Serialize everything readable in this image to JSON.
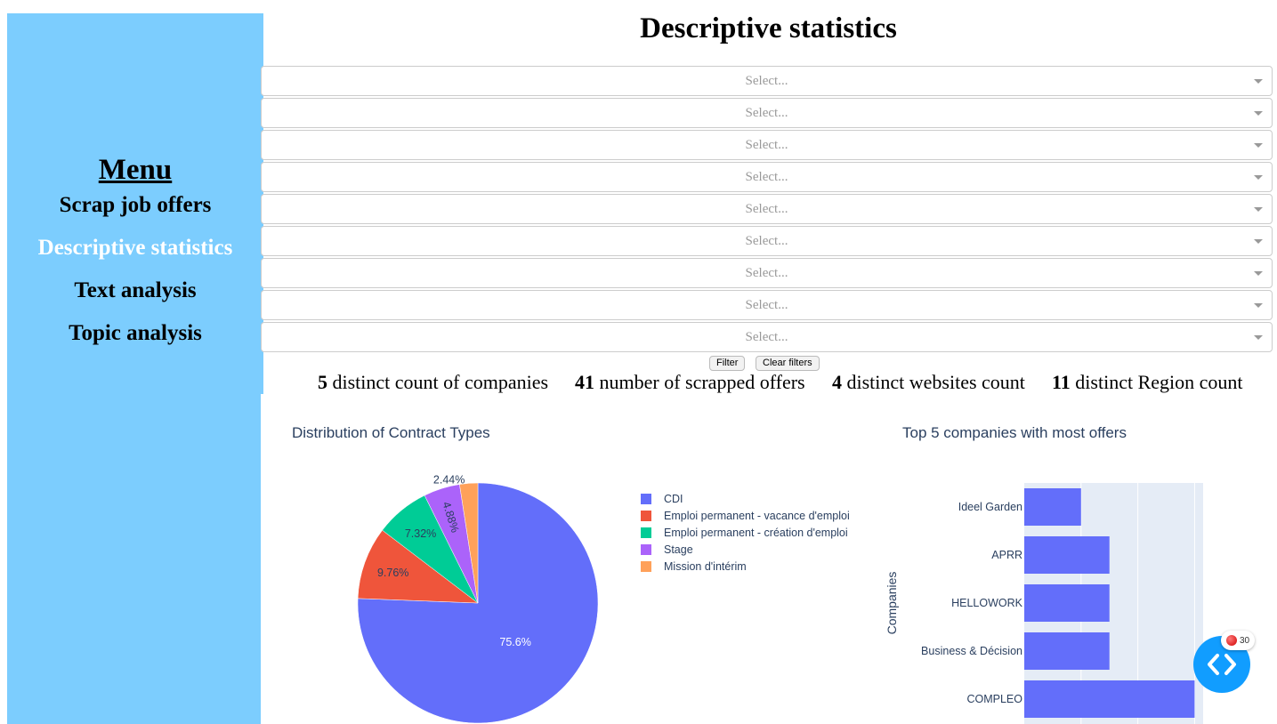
{
  "sidebar": {
    "title": "Menu",
    "items": [
      {
        "label": "Scrap job offers",
        "active": false
      },
      {
        "label": "Descriptive statistics",
        "active": true
      },
      {
        "label": "Text analysis",
        "active": false
      },
      {
        "label": "Topic analysis",
        "active": false
      }
    ],
    "bg_color": "#7ccdfe"
  },
  "page_title": "Descriptive statistics",
  "filters": {
    "selects": [
      {
        "placeholder": "Select..."
      },
      {
        "placeholder": "Select..."
      },
      {
        "placeholder": "Select..."
      },
      {
        "placeholder": "Select..."
      },
      {
        "placeholder": "Select..."
      },
      {
        "placeholder": "Select..."
      },
      {
        "placeholder": "Select..."
      },
      {
        "placeholder": "Select..."
      },
      {
        "placeholder": "Select..."
      }
    ],
    "filter_label": "Filter",
    "clear_label": "Clear filters"
  },
  "stats": [
    {
      "value": "5",
      "label": " distinct count of companies"
    },
    {
      "value": "41",
      "label": " number of scrapped offers"
    },
    {
      "value": "4",
      "label": " distinct websites count"
    },
    {
      "value": "11",
      "label": " distinct Region count"
    }
  ],
  "debug_badge": {
    "count": "30"
  },
  "chart_data": [
    {
      "type": "pie",
      "title": "Distribution of Contract Types",
      "labels": [
        "CDI",
        "Emploi permanent - vacance d'emploi",
        "Emploi permanent - création d'emploi",
        "Stage",
        "Mission d'intérim"
      ],
      "values": [
        31,
        4,
        3,
        2,
        1
      ],
      "percent_labels": [
        "75.6%",
        "9.76%",
        "7.32%",
        "4.88%",
        "2.44%"
      ],
      "colors": [
        "#636efa",
        "#ef553b",
        "#00cc96",
        "#ab63fa",
        "#ffa15a"
      ],
      "legend": "right"
    },
    {
      "type": "bar",
      "orientation": "horizontal",
      "title": "Top 5 companies with most offers",
      "ylabel": "Companies",
      "categories": [
        "Ideel Garden",
        "APRR",
        "HELLOWORK",
        "Business & Décision",
        "COMPLEO"
      ],
      "values": [
        2,
        3,
        3,
        3,
        6
      ],
      "color": "#636efa",
      "xlim": [
        0,
        6.3
      ]
    }
  ]
}
